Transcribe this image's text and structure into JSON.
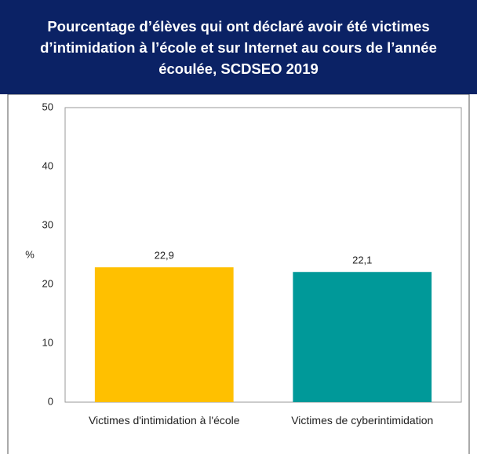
{
  "chart_data": {
    "type": "bar",
    "title": "Pourcentage d’élèves qui ont déclaré avoir été victimes d’intimidation à l’école et sur Internet au cours de l’année écoulée, SCDSEO 2019",
    "y_label": "%",
    "categories": [
      "Victimes d'intimidation à l'école",
      "Victimes de cyberintimidation"
    ],
    "values": [
      22.9,
      22.1
    ],
    "value_labels": [
      "22,9",
      "22,1"
    ],
    "colors": [
      "#ffc000",
      "#009999"
    ],
    "ylim": [
      0,
      50
    ],
    "yticks": [
      0,
      10,
      20,
      30,
      40,
      50
    ],
    "grid": false
  }
}
